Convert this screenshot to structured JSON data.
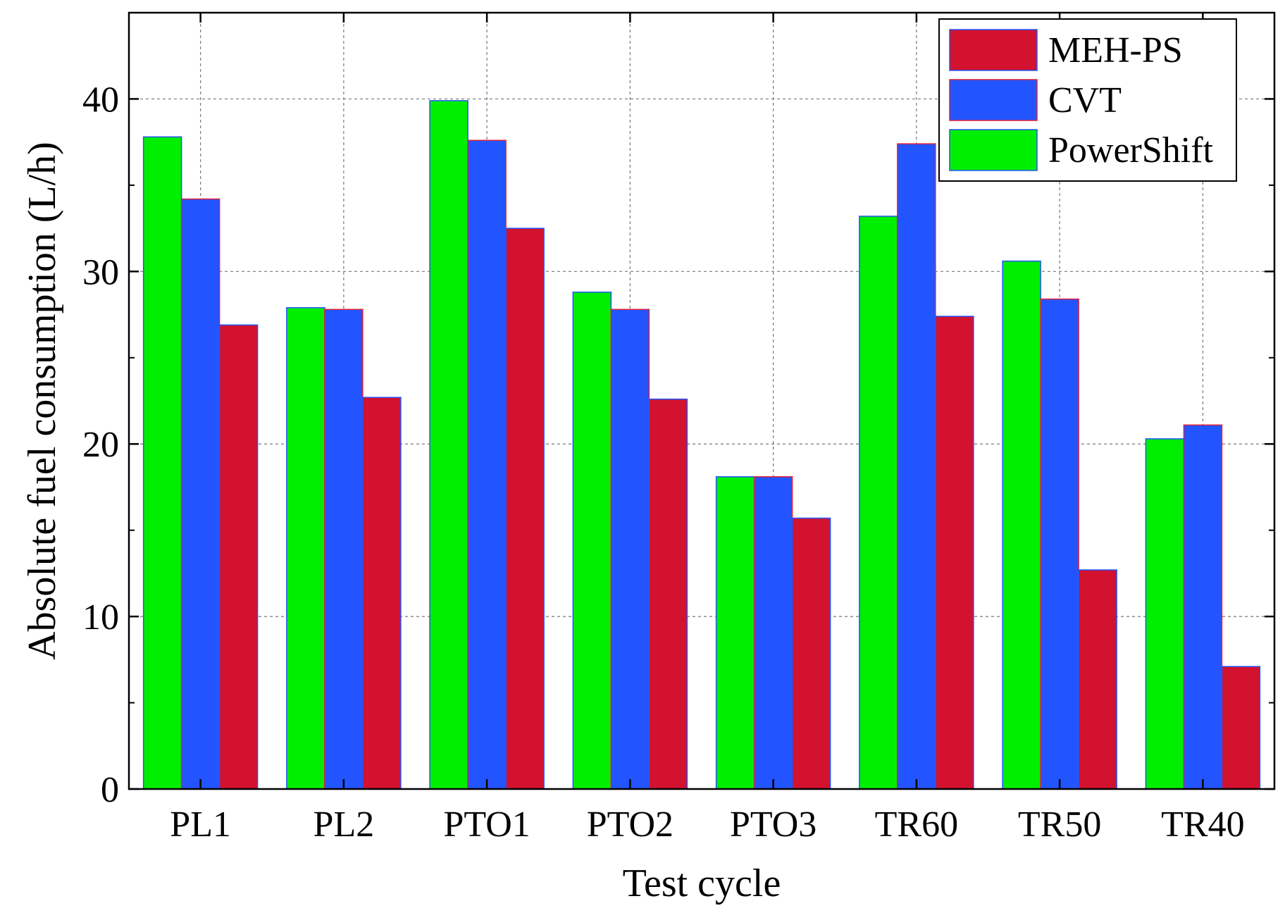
{
  "chart_data": {
    "type": "bar",
    "title": "",
    "xlabel": "Test cycle",
    "ylabel": "Absolute fuel consumption (L/h)",
    "ylim": [
      0,
      45
    ],
    "yticks": [
      0,
      10,
      20,
      30,
      40
    ],
    "grid": true,
    "legend_position": "top-right",
    "categories": [
      "PL1",
      "PL2",
      "PTO1",
      "PTO2",
      "PTO3",
      "TR60",
      "TR50",
      "TR40"
    ],
    "series": [
      {
        "name": "PowerShift",
        "color": "#00ee00",
        "edge": "#2255ff",
        "values": [
          37.8,
          27.9,
          39.9,
          28.8,
          18.1,
          33.2,
          30.6,
          20.3
        ]
      },
      {
        "name": "CVT",
        "color": "#2255ff",
        "edge": "#e0203a",
        "values": [
          34.2,
          27.8,
          37.6,
          27.8,
          18.1,
          37.4,
          28.4,
          21.1
        ]
      },
      {
        "name": "MEH-PS",
        "color": "#d2122e",
        "edge": "#2255ff",
        "values": [
          26.9,
          22.7,
          32.5,
          22.6,
          15.7,
          27.4,
          12.7,
          7.1
        ]
      }
    ],
    "legend_order": [
      "MEH-PS",
      "CVT",
      "PowerShift"
    ]
  }
}
